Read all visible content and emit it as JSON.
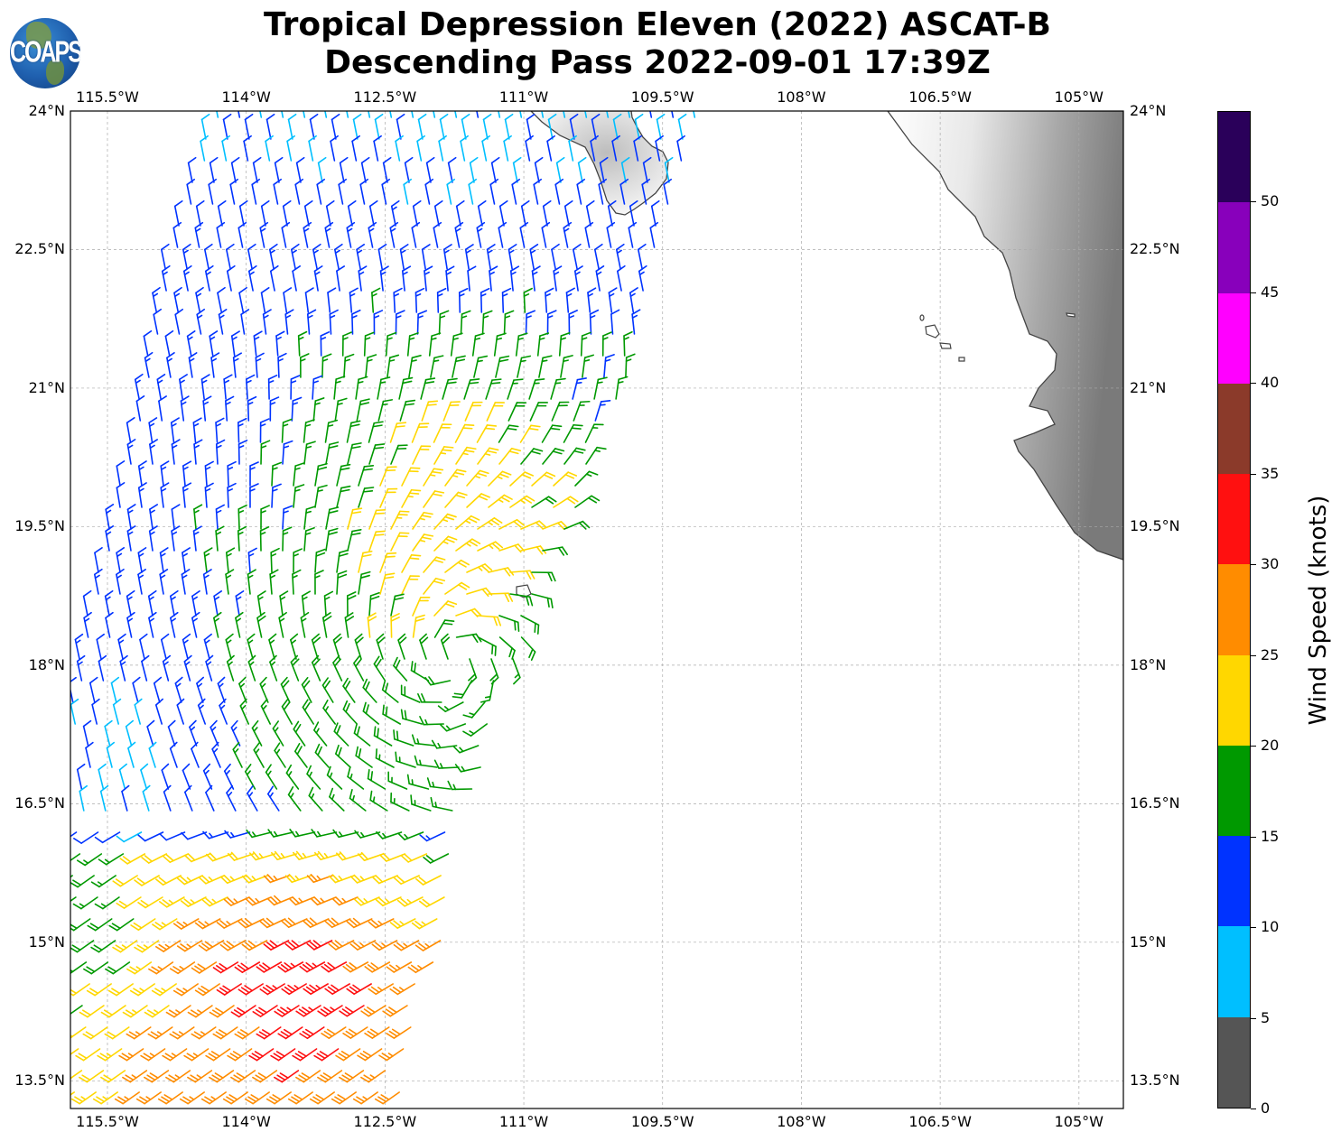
{
  "header": {
    "title_line1": "Tropical Depression Eleven (2022) ASCAT-B",
    "title_line2": "Descending Pass 2022-09-01 17:39Z",
    "logo_text": "COAPS"
  },
  "map": {
    "lon_labels": [
      "115.5°W",
      "114°W",
      "112.5°W",
      "111°W",
      "109.5°W",
      "108°W",
      "106.5°W",
      "105°W"
    ],
    "lat_labels": [
      "24°N",
      "22.5°N",
      "21°N",
      "19.5°N",
      "18°N",
      "16.5°N",
      "15°N",
      "13.5°N"
    ],
    "lon_values": [
      -115.5,
      -114,
      -112.5,
      -111,
      -109.5,
      -108,
      -106.5,
      -105
    ],
    "lat_values": [
      24,
      22.5,
      21,
      19.5,
      18,
      16.5,
      15,
      13.5
    ],
    "extent": {
      "lon_min": -115.9,
      "lon_max": -104.52,
      "lat_min": 13.2,
      "lat_max": 24.0
    }
  },
  "colorbar": {
    "label": "Wind Speed (knots)",
    "ticks": [
      "0",
      "5",
      "10",
      "15",
      "20",
      "25",
      "30",
      "35",
      "40",
      "45",
      "50"
    ],
    "bins": [
      0,
      5,
      10,
      15,
      20,
      25,
      30,
      35,
      40,
      45,
      50,
      55
    ],
    "colors": [
      "#555555",
      "#00bfff",
      "#0033ff",
      "#009900",
      "#ffd700",
      "#ff8c00",
      "#ff1010",
      "#8b3a2a",
      "#ff00ff",
      "#8800bb",
      "#2a005a"
    ]
  }
}
